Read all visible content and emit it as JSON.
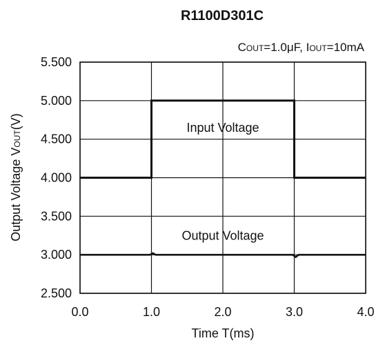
{
  "chart_data": {
    "type": "line",
    "title": "R1100D301C",
    "subtitle": {
      "c_main": "C",
      "c_sub": "OUT",
      "c_value": "=1.0μF, ",
      "i_main": "I",
      "i_sub": "OUT",
      "i_value": "=10mA"
    },
    "xlabel": "Time T(ms)",
    "ylabel": {
      "main": "Output Voltage V",
      "sub": "OUT",
      "tail": "(V)"
    },
    "xlim": [
      0.0,
      4.0
    ],
    "ylim": [
      2.5,
      5.5
    ],
    "x_ticks": [
      0.0,
      1.0,
      2.0,
      3.0,
      4.0
    ],
    "x_tick_labels": [
      "0.0",
      "1.0",
      "2.0",
      "3.0",
      "4.0"
    ],
    "y_ticks": [
      2.5,
      3.0,
      3.5,
      4.0,
      4.5,
      5.0,
      5.5
    ],
    "y_tick_labels": [
      "2.500",
      "3.000",
      "3.500",
      "4.000",
      "4.500",
      "5.000",
      "5.500"
    ],
    "grid": true,
    "series": [
      {
        "name": "Input Voltage",
        "color": "#111111",
        "x": [
          0.0,
          1.0,
          1.0,
          3.0,
          3.0,
          4.0
        ],
        "y": [
          4.0,
          4.0,
          5.0,
          5.0,
          4.0,
          4.0
        ]
      },
      {
        "name": "Output Voltage",
        "color": "#111111",
        "x": [
          0.0,
          0.98,
          1.02,
          1.06,
          2.98,
          3.02,
          3.06,
          4.0
        ],
        "y": [
          3.0,
          3.0,
          3.02,
          3.0,
          3.0,
          2.97,
          3.0,
          3.0
        ]
      }
    ],
    "annotations": [
      {
        "text": "Input Voltage",
        "x": 2.0,
        "y": 4.65
      },
      {
        "text": "Output Voltage",
        "x": 2.0,
        "y": 3.25
      }
    ]
  }
}
